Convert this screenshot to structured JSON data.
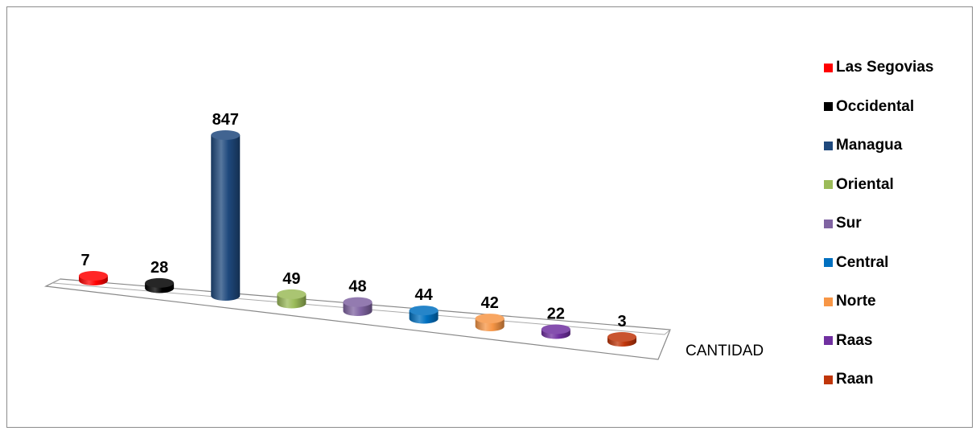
{
  "chart_data": {
    "type": "bar",
    "style": "3d-cylinder",
    "categories": [
      "CANTIDAD"
    ],
    "series": [
      {
        "name": "Las Segovias",
        "value": 7,
        "color": "#ff0000"
      },
      {
        "name": "Occidental",
        "value": 28,
        "color": "#000000"
      },
      {
        "name": "Managua",
        "value": 847,
        "color": "#1f497d"
      },
      {
        "name": "Oriental",
        "value": 49,
        "color": "#9bbb59"
      },
      {
        "name": "Sur",
        "value": 48,
        "color": "#8064a2"
      },
      {
        "name": "Central",
        "value": 44,
        "color": "#0070c0"
      },
      {
        "name": "Norte",
        "value": 42,
        "color": "#f79646"
      },
      {
        "name": "Raas",
        "value": 22,
        "color": "#7030a0"
      },
      {
        "name": "Raan",
        "value": 3,
        "color": "#c0360a"
      }
    ],
    "legend": "right",
    "data_labels": true
  }
}
